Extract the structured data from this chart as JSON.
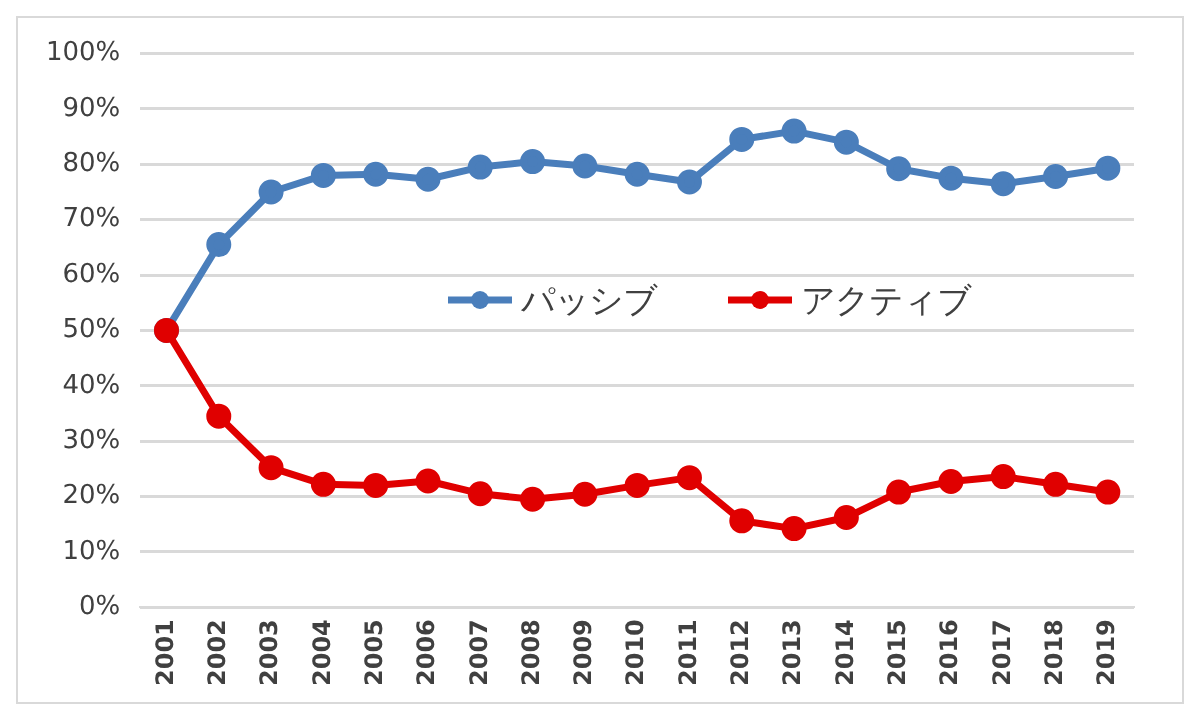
{
  "chart_data": {
    "type": "line",
    "categories": [
      "2001",
      "2002",
      "2003",
      "2004",
      "2005",
      "2006",
      "2007",
      "2008",
      "2009",
      "2010",
      "2011",
      "2012",
      "2013",
      "2014",
      "2015",
      "2016",
      "2017",
      "2018",
      "2019"
    ],
    "series": [
      {
        "name": "パッシブ",
        "color": "#4a7ebb",
        "values": [
          50,
          65.5,
          75,
          78,
          78.2,
          77.3,
          79.5,
          80.5,
          79.7,
          78.2,
          76.8,
          84.5,
          86,
          84,
          79.2,
          77.5,
          76.5,
          77.8,
          79.3
        ]
      },
      {
        "name": "アクティブ",
        "color": "#e00000",
        "values": [
          50,
          34.5,
          25.2,
          22.2,
          22,
          22.8,
          20.5,
          19.5,
          20.4,
          22,
          23.4,
          15.6,
          14.2,
          16.2,
          20.8,
          22.7,
          23.6,
          22.2,
          20.8
        ]
      }
    ],
    "ylim": [
      0,
      100
    ],
    "yticks": [
      {
        "value": 0,
        "label": "0%"
      },
      {
        "value": 10,
        "label": "10%"
      },
      {
        "value": 20,
        "label": "20%"
      },
      {
        "value": 30,
        "label": "30%"
      },
      {
        "value": 40,
        "label": "40%"
      },
      {
        "value": 50,
        "label": "50%"
      },
      {
        "value": 60,
        "label": "60%"
      },
      {
        "value": 70,
        "label": "70%"
      },
      {
        "value": 80,
        "label": "80%"
      },
      {
        "value": 90,
        "label": "90%"
      },
      {
        "value": 100,
        "label": "100%"
      }
    ],
    "grid": "y",
    "legend": "center",
    "marker": "circle",
    "line_style": "solid"
  }
}
